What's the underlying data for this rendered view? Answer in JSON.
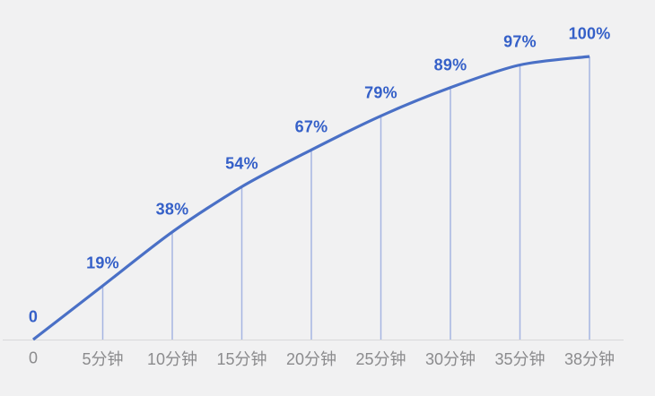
{
  "chart_data": {
    "type": "line",
    "title": "",
    "x_tick_labels": [
      "0",
      "5分钟",
      "10分钟",
      "15分钟",
      "20分钟",
      "25分钟",
      "30分钟",
      "35分钟",
      "38分钟"
    ],
    "x_minutes": [
      0,
      5,
      10,
      15,
      20,
      25,
      30,
      35,
      38
    ],
    "values_percent": [
      0,
      19,
      38,
      54,
      67,
      79,
      89,
      97,
      100
    ],
    "point_labels": [
      "0",
      "19%",
      "38%",
      "54%",
      "67%",
      "79%",
      "89%",
      "97%",
      "100%"
    ],
    "ylim": [
      0,
      100
    ],
    "legend_position": "none",
    "grid": "vertical droplines from each data point to x-axis",
    "x_axis_line": true
  },
  "colors": {
    "background": "#f1f1f2",
    "line": "#4a70c6",
    "dropline": "#a6b5e2",
    "point_label": "#3560c8",
    "axis_label": "#8b8b8d",
    "axis_line": "#d8d8da"
  }
}
